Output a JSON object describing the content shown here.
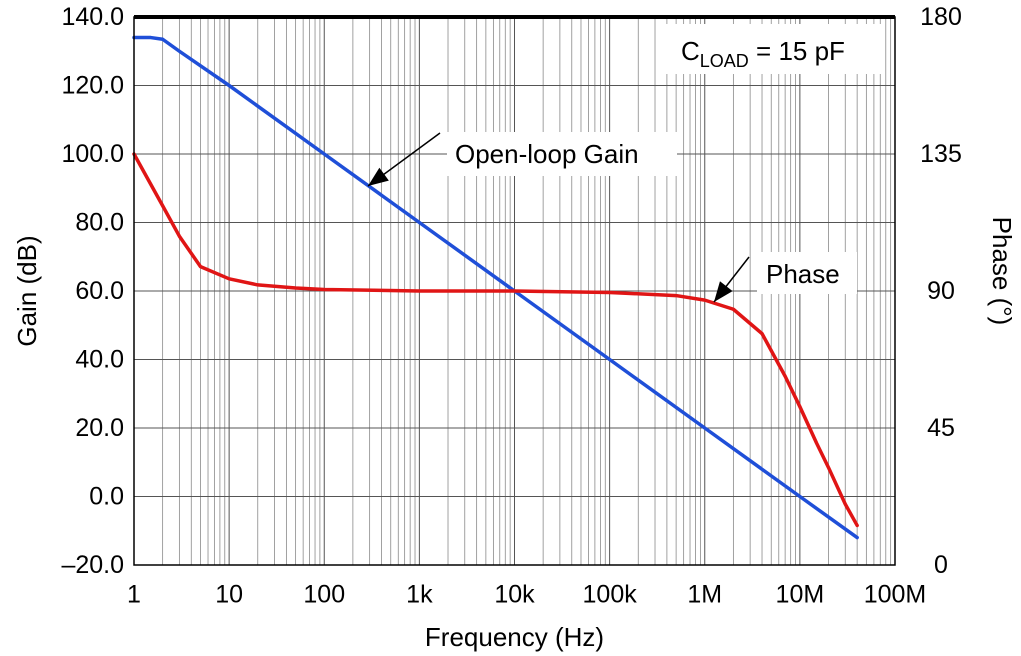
{
  "chart_data": {
    "type": "line",
    "xlabel": "Frequency (Hz)",
    "ylabel": "Gain (dB)",
    "y2label": "Phase (°)",
    "xscale": "log",
    "xlim": [
      1,
      100000000
    ],
    "ylim": [
      -20,
      140
    ],
    "y2lim": [
      0,
      180
    ],
    "grid": true,
    "x_ticks": [
      {
        "value": 1,
        "label": "1"
      },
      {
        "value": 10,
        "label": "10"
      },
      {
        "value": 100,
        "label": "100"
      },
      {
        "value": 1000,
        "label": "1k"
      },
      {
        "value": 10000,
        "label": "10k"
      },
      {
        "value": 100000,
        "label": "100k"
      },
      {
        "value": 1000000,
        "label": "1M"
      },
      {
        "value": 10000000,
        "label": "10M"
      },
      {
        "value": 100000000,
        "label": "100M"
      }
    ],
    "y_ticks": [
      {
        "value": 140,
        "label": "140.0"
      },
      {
        "value": 120,
        "label": "120.0"
      },
      {
        "value": 100,
        "label": "100.0"
      },
      {
        "value": 80,
        "label": "80.0"
      },
      {
        "value": 60,
        "label": "60.0"
      },
      {
        "value": 40,
        "label": "40.0"
      },
      {
        "value": 20,
        "label": "20.0"
      },
      {
        "value": 0,
        "label": "0.0"
      },
      {
        "value": -20,
        "label": "–20.0"
      }
    ],
    "y2_ticks": [
      {
        "value": 180,
        "label": "180"
      },
      {
        "value": 135,
        "label": "135"
      },
      {
        "value": 90,
        "label": "90"
      },
      {
        "value": 45,
        "label": "45"
      },
      {
        "value": 0,
        "label": "0"
      }
    ],
    "series": [
      {
        "name": "Open-loop Gain",
        "axis": "left",
        "color": "#1f4fd8",
        "x": [
          1,
          1.5,
          2,
          3,
          10,
          100,
          1000,
          10000,
          100000,
          1000000,
          10000000,
          40000000
        ],
        "y": [
          134,
          134,
          133.5,
          130,
          120,
          100,
          80,
          60,
          40,
          20,
          0,
          -12
        ]
      },
      {
        "name": "Phase",
        "axis": "right",
        "color": "#e01515",
        "x": [
          1,
          2,
          3,
          5,
          10,
          20,
          50,
          100,
          1000,
          10000,
          100000,
          500000,
          1000000,
          2000000,
          4000000,
          7000000,
          10000000,
          15000000,
          20000000,
          30000000,
          40000000
        ],
        "y": [
          135,
          118,
          108,
          98,
          94,
          92,
          91,
          90.5,
          90,
          90,
          89.5,
          88.5,
          87,
          84,
          76,
          62,
          52,
          40,
          32,
          20,
          13
        ]
      }
    ],
    "annotations": [
      {
        "text": "Open-loop Gain",
        "target": "Open-loop Gain"
      },
      {
        "text": "Phase",
        "target": "Phase"
      }
    ],
    "legend_box": {
      "prefix": "C",
      "sub": "LOAD",
      "suffix": " = 15 pF"
    }
  }
}
